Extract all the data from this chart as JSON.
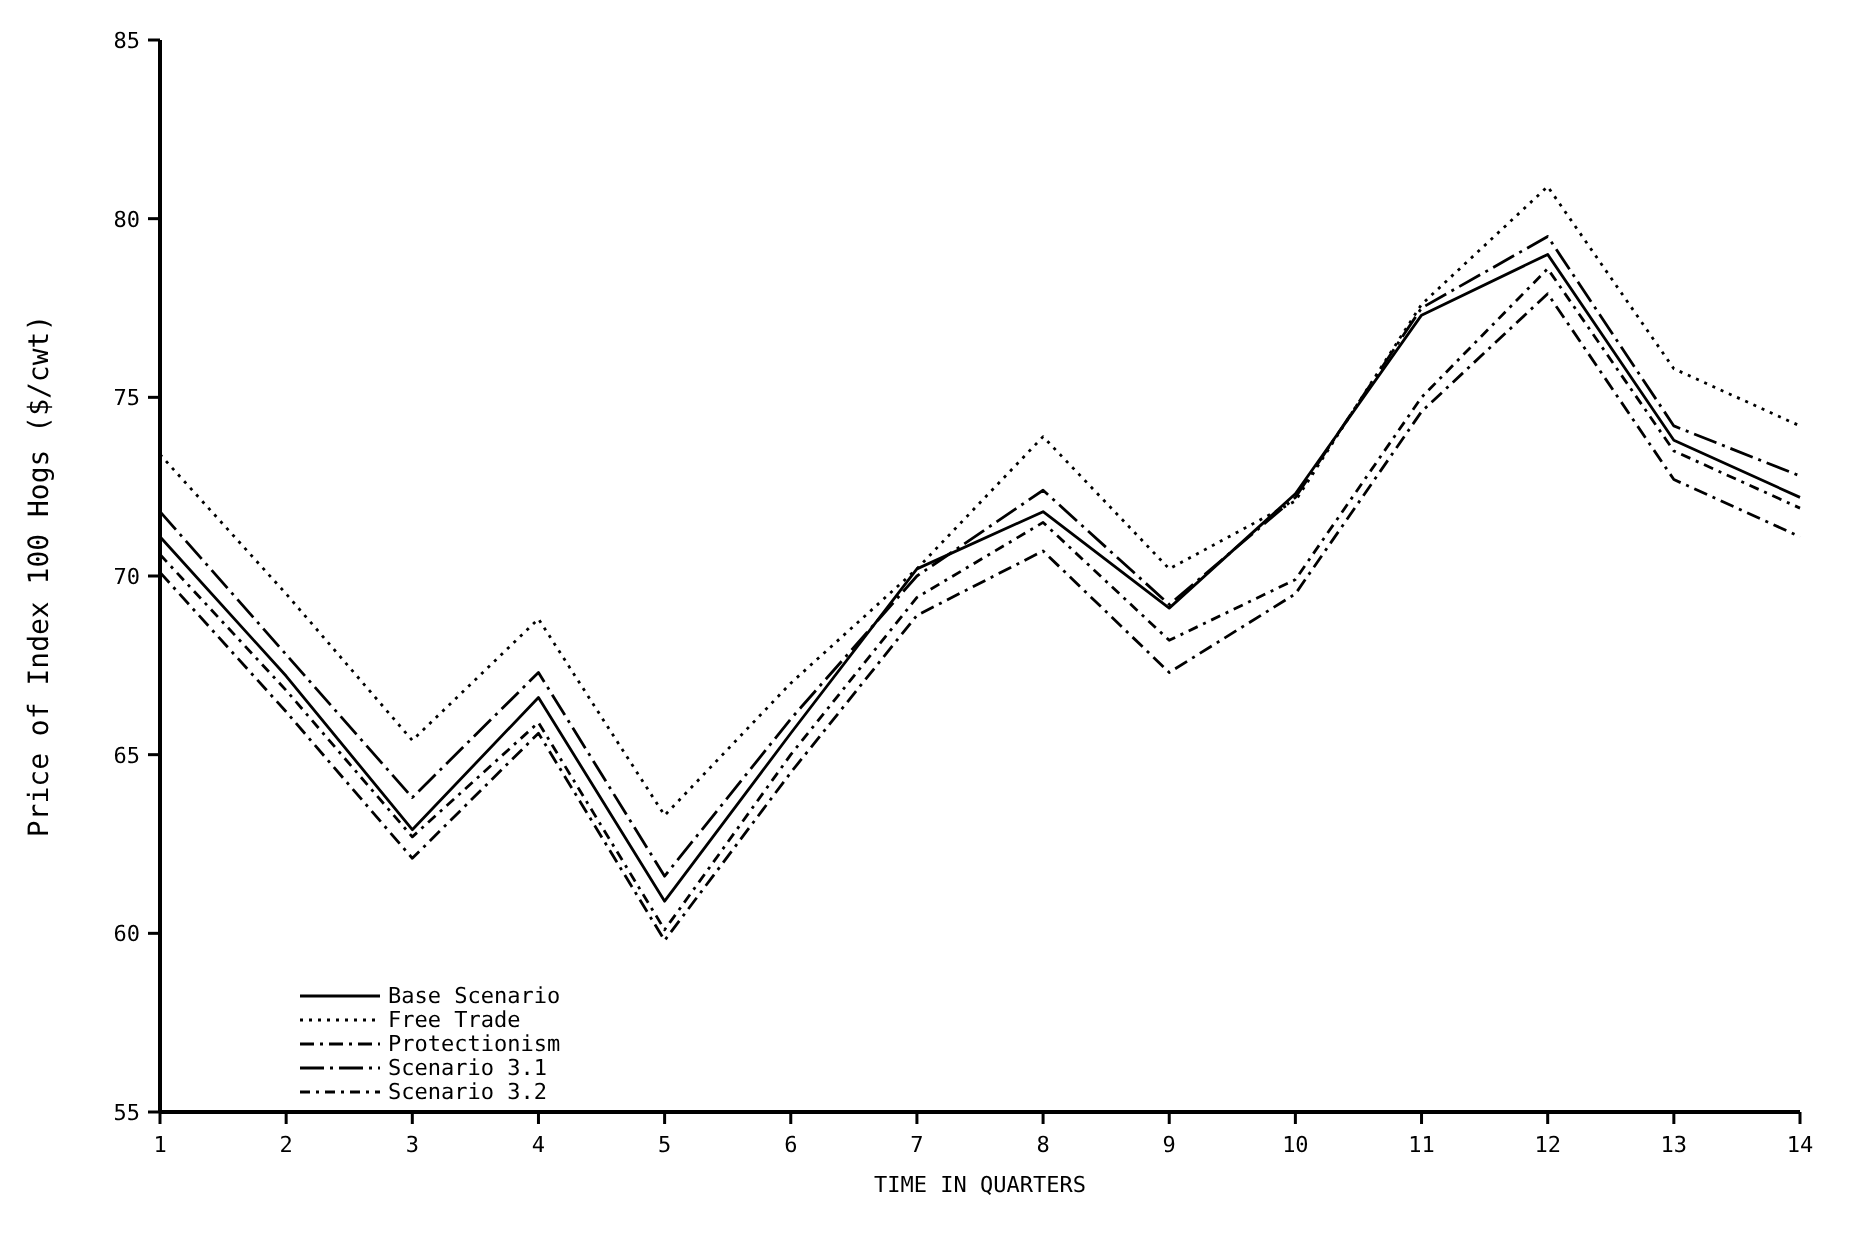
{
  "chart_data": {
    "type": "line",
    "xlabel": "TIME IN QUARTERS",
    "ylabel": "Price of Index 100 Hogs ($/cwt)",
    "x": [
      1,
      2,
      3,
      4,
      5,
      6,
      7,
      8,
      9,
      10,
      11,
      12,
      13,
      14
    ],
    "series": [
      {
        "name": "Base Scenario",
        "color": "#000000",
        "line_style": "solid",
        "values": [
          71.1,
          67.2,
          62.9,
          66.6,
          60.9,
          65.6,
          70.2,
          71.8,
          69.1,
          72.3,
          77.3,
          79.0,
          73.8,
          72.2
        ]
      },
      {
        "name": "Free Trade",
        "color": "#000000",
        "line_style": "dotted",
        "values": [
          73.4,
          69.5,
          65.4,
          68.8,
          63.3,
          67.0,
          70.2,
          73.9,
          70.2,
          72.1,
          77.6,
          80.9,
          75.8,
          74.2
        ]
      },
      {
        "name": "Protectionism",
        "color": "#000000",
        "line_style": "dashdot",
        "values": [
          70.1,
          66.2,
          62.1,
          65.6,
          59.8,
          64.5,
          68.9,
          70.7,
          67.3,
          69.5,
          74.6,
          77.9,
          72.7,
          71.1
        ]
      },
      {
        "name": "Scenario 3.1",
        "color": "#000000",
        "line_style": "longdash",
        "values": [
          71.8,
          67.8,
          63.8,
          67.3,
          61.6,
          66.0,
          70.0,
          72.4,
          69.2,
          72.2,
          77.5,
          79.5,
          74.2,
          72.8
        ]
      },
      {
        "name": "Scenario 3.2",
        "color": "#000000",
        "line_style": "dashed",
        "values": [
          70.6,
          66.8,
          62.7,
          65.9,
          60.1,
          65.0,
          69.4,
          71.5,
          68.2,
          69.9,
          75.0,
          78.6,
          73.5,
          71.9
        ]
      }
    ],
    "xlim": [
      1,
      14
    ],
    "xticks": [
      1,
      2,
      3,
      4,
      5,
      6,
      7,
      8,
      9,
      10,
      11,
      12,
      13,
      14
    ],
    "ylim": [
      55,
      85
    ],
    "yticks": [
      55,
      60,
      65,
      70,
      75,
      80,
      85
    ],
    "legend": "bottom left",
    "grid": false
  }
}
